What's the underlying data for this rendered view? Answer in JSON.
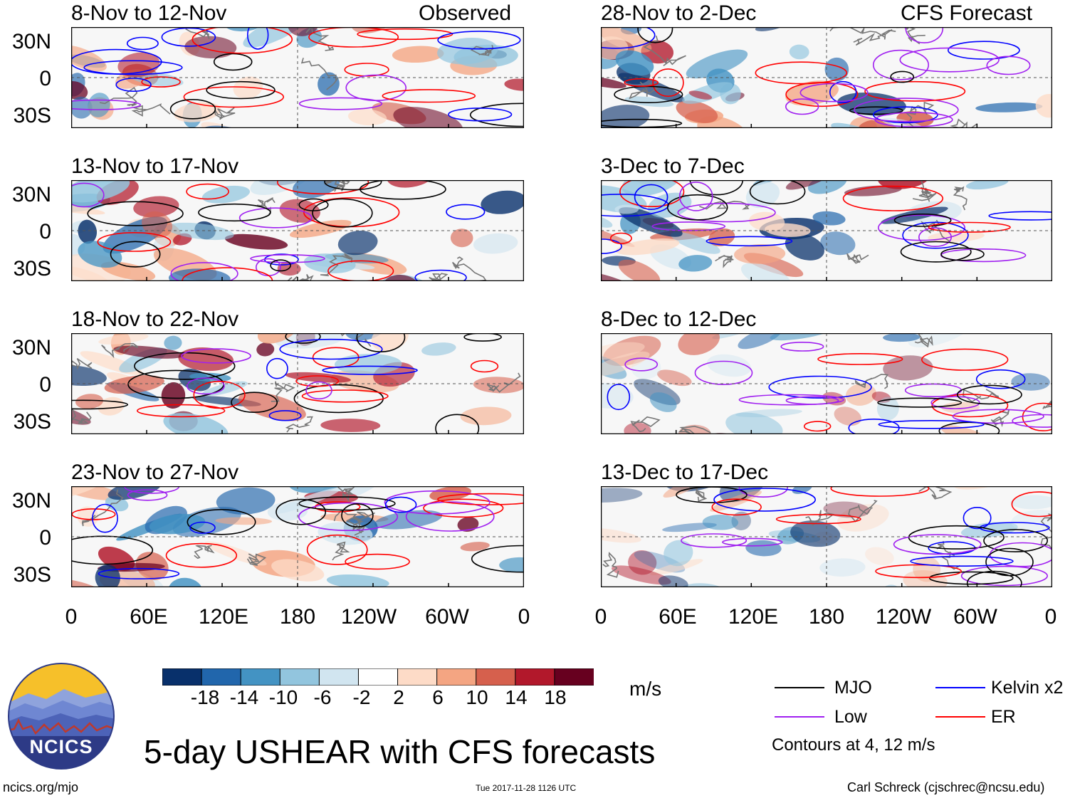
{
  "panels": [
    {
      "title": "8-Nov to 12-Nov",
      "tag": "Observed"
    },
    {
      "title": "13-Nov to 17-Nov",
      "tag": ""
    },
    {
      "title": "18-Nov to 22-Nov",
      "tag": ""
    },
    {
      "title": "23-Nov to 27-Nov",
      "tag": ""
    },
    {
      "title": "28-Nov to 2-Dec",
      "tag": "CFS Forecast"
    },
    {
      "title": "3-Dec to 7-Dec",
      "tag": ""
    },
    {
      "title": "8-Dec to 12-Dec",
      "tag": ""
    },
    {
      "title": "13-Dec to 17-Dec",
      "tag": ""
    }
  ],
  "lat_labels": [
    "30N",
    "0",
    "30S"
  ],
  "lon_labels": [
    "0",
    "60E",
    "120E",
    "180",
    "120W",
    "60W",
    "0"
  ],
  "colorbar": {
    "ticks": [
      "-18",
      "-14",
      "-10",
      "-6",
      "-2",
      "2",
      "6",
      "10",
      "14",
      "18"
    ],
    "colors": [
      "#08306b",
      "#2166ac",
      "#4393c3",
      "#92c5de",
      "#d1e5f0",
      "#ffffff",
      "#fddbc7",
      "#f4a582",
      "#d6604d",
      "#b2182b",
      "#67001f"
    ],
    "units": "m/s"
  },
  "legend": {
    "items": [
      {
        "label": "MJO",
        "color": "#000000"
      },
      {
        "label": "Kelvin x2",
        "color": "#0000ff"
      },
      {
        "label": "Low",
        "color": "#a020f0"
      },
      {
        "label": "ER",
        "color": "#ff0000"
      }
    ],
    "note": "Contours at 4, 12 m/s"
  },
  "logo_text": "NCICS",
  "main_title": "5-day USHEAR with CFS forecasts",
  "footer": {
    "left": "ncics.org/mjo",
    "center": "Tue 2017-11-28 1126 UTC",
    "right": "Carl Schreck (cjschrec@ncsu.edu)"
  }
}
